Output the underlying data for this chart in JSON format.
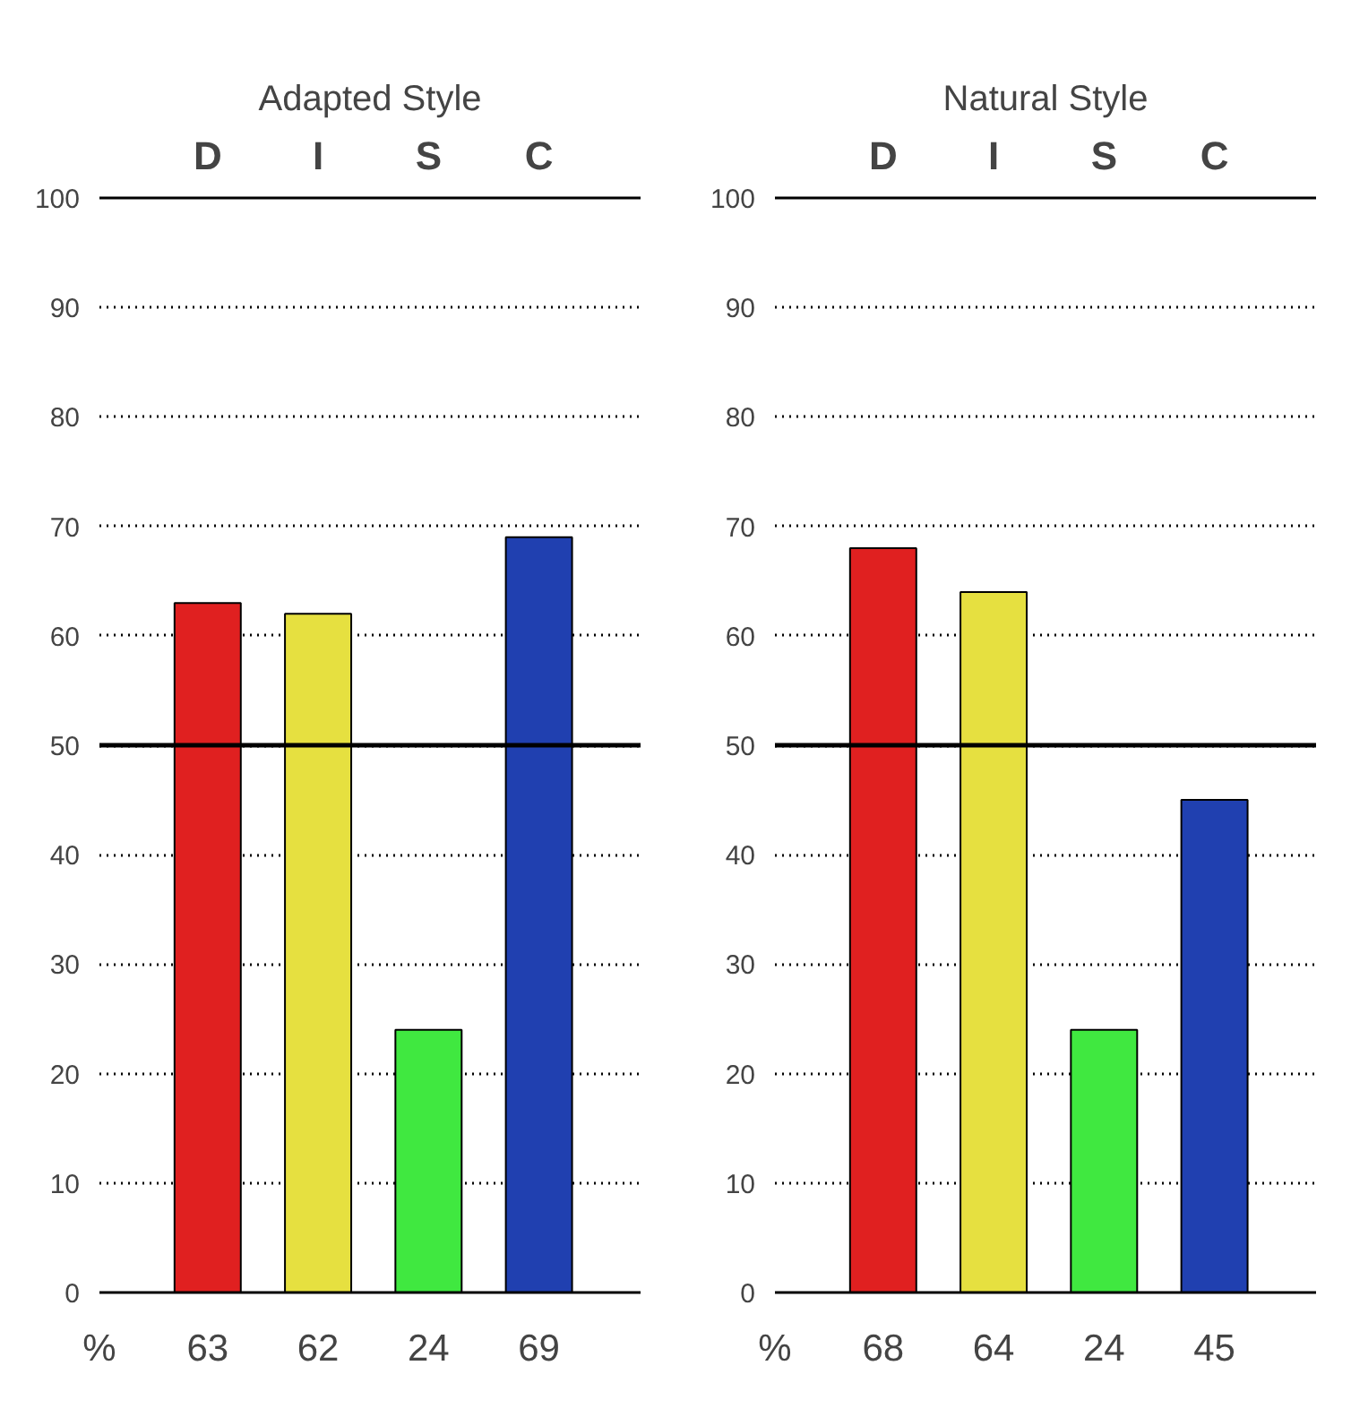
{
  "chart_data": [
    {
      "type": "bar",
      "title": "Adapted Style",
      "categories": [
        "D",
        "I",
        "S",
        "C"
      ],
      "values": [
        63,
        62,
        24,
        69
      ],
      "colors": [
        "#e02020",
        "#e6e040",
        "#40e840",
        "#2040b0"
      ],
      "ylim": [
        0,
        100
      ],
      "yticks": [
        0,
        10,
        20,
        30,
        40,
        50,
        60,
        70,
        80,
        90,
        100
      ],
      "grid": "y",
      "ref_lines": [
        {
          "axis": "y",
          "value": 50,
          "label": null,
          "color": "#000000"
        }
      ],
      "data_labels": true,
      "annotations": [
        "%"
      ]
    },
    {
      "type": "bar",
      "title": "Natural Style",
      "categories": [
        "D",
        "I",
        "S",
        "C"
      ],
      "values": [
        68,
        64,
        24,
        45
      ],
      "colors": [
        "#e02020",
        "#e6e040",
        "#40e840",
        "#2040b0"
      ],
      "ylim": [
        0,
        100
      ],
      "yticks": [
        0,
        10,
        20,
        30,
        40,
        50,
        60,
        70,
        80,
        90,
        100
      ],
      "grid": "y",
      "ref_lines": [
        {
          "axis": "y",
          "value": 50,
          "label": null,
          "color": "#000000"
        }
      ],
      "data_labels": true,
      "annotations": [
        "%"
      ]
    }
  ]
}
